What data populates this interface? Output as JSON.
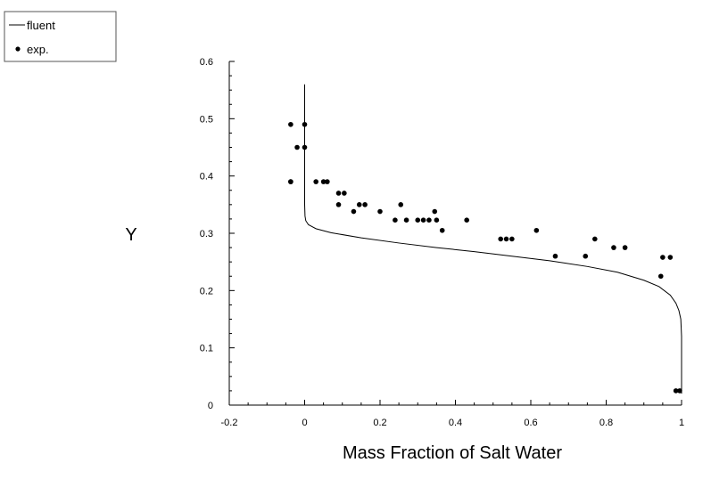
{
  "chart_data": {
    "type": "scatter",
    "xlabel": "Mass Fraction of Salt Water",
    "ylabel": "Y",
    "xlim": [
      -0.2,
      1.0
    ],
    "ylim": [
      0,
      0.6
    ],
    "x_ticks": [
      -0.2,
      0,
      0.2,
      0.4,
      0.6,
      0.8,
      1.0
    ],
    "x_tick_labels": [
      "-0.2",
      "0",
      "0.2",
      "0.4",
      "0.6",
      "0.8",
      "1"
    ],
    "y_ticks": [
      0,
      0.1,
      0.2,
      0.3,
      0.4,
      0.5,
      0.6
    ],
    "y_tick_labels": [
      "0",
      "0.1",
      "0.2",
      "0.3",
      "0.4",
      "0.5",
      "0.6"
    ],
    "grid": false,
    "legend_position": "top-left",
    "series": [
      {
        "name": "fluent",
        "kind": "line",
        "color": "#000000",
        "x": [
          0.0,
          0.0,
          0.0,
          0.001,
          0.003,
          0.01,
          0.03,
          0.07,
          0.15,
          0.25,
          0.35,
          0.45,
          0.55,
          0.65,
          0.75,
          0.83,
          0.9,
          0.94,
          0.97,
          0.985,
          0.993,
          0.998,
          1.0,
          1.0
        ],
        "y": [
          0.56,
          0.45,
          0.35,
          0.33,
          0.322,
          0.315,
          0.308,
          0.301,
          0.292,
          0.283,
          0.275,
          0.268,
          0.26,
          0.252,
          0.242,
          0.232,
          0.218,
          0.207,
          0.192,
          0.178,
          0.165,
          0.15,
          0.12,
          0.02
        ]
      },
      {
        "name": "exp.",
        "kind": "scatter",
        "color": "#000000",
        "x": [
          -0.037,
          -0.037,
          -0.02,
          0.0,
          0.0,
          -0.037,
          0.03,
          0.05,
          0.06,
          0.09,
          0.105,
          0.09,
          0.13,
          0.145,
          0.16,
          0.2,
          0.24,
          0.255,
          0.27,
          0.3,
          0.315,
          0.33,
          0.345,
          0.35,
          0.365,
          0.43,
          0.52,
          0.535,
          0.55,
          0.615,
          0.665,
          0.745,
          0.77,
          0.82,
          0.85,
          0.945,
          0.95,
          0.97,
          0.985,
          0.995
        ],
        "y": [
          0.49,
          0.39,
          0.45,
          0.49,
          0.45,
          0.39,
          0.39,
          0.39,
          0.39,
          0.37,
          0.37,
          0.35,
          0.338,
          0.35,
          0.35,
          0.338,
          0.323,
          0.35,
          0.323,
          0.323,
          0.323,
          0.323,
          0.338,
          0.323,
          0.305,
          0.323,
          0.29,
          0.29,
          0.29,
          0.305,
          0.26,
          0.26,
          0.29,
          0.275,
          0.275,
          0.225,
          0.258,
          0.258,
          0.025,
          0.025
        ]
      }
    ]
  }
}
